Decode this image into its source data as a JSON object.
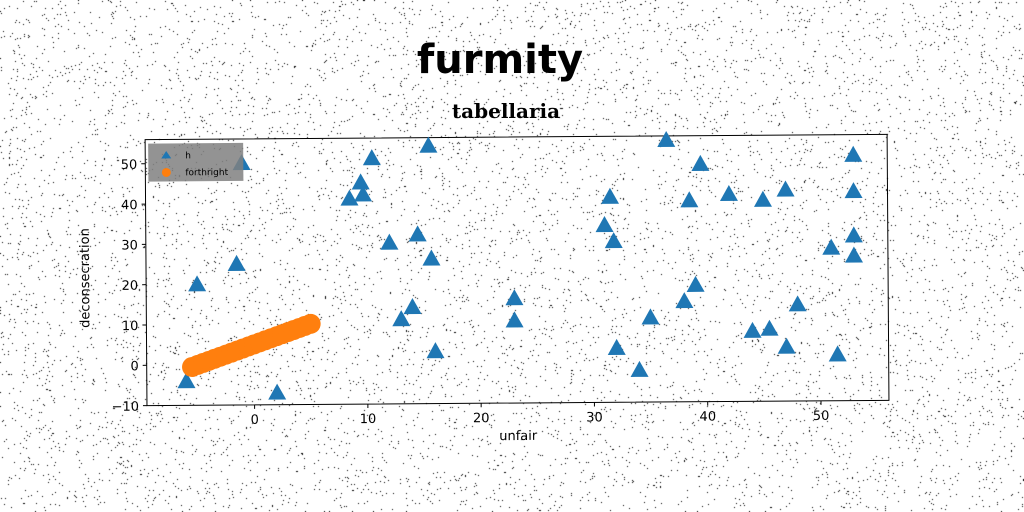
{
  "figure": {
    "title": "furmity",
    "subtitle": "tabellaria",
    "background": "#ffffff"
  },
  "chart_data": {
    "type": "scatter",
    "title": "tabellaria",
    "xlabel": "unfair",
    "ylabel": "deconsecration",
    "xlim": [
      -9.5,
      56
    ],
    "ylim": [
      -10,
      56
    ],
    "xticks": [
      "0",
      "10",
      "20",
      "30",
      "40",
      "50"
    ],
    "yticks": [
      "−10",
      "0",
      "10",
      "20",
      "30",
      "40",
      "50"
    ],
    "grid": false,
    "legend": {
      "placement": "top-left",
      "background": "#808080",
      "entries": [
        {
          "label": "h",
          "marker": "triangle-icon",
          "color": "#1f77b4"
        },
        {
          "label": "forthright",
          "marker": "circle-icon",
          "color": "#ff7f0e"
        }
      ]
    },
    "series": [
      {
        "name": "h",
        "color": "#1f77b4",
        "marker": "triangle",
        "points": [
          [
            -6,
            -4
          ],
          [
            -5,
            20
          ],
          [
            -1.5,
            25
          ],
          [
            -1,
            50
          ],
          [
            2,
            -7
          ],
          [
            8.5,
            41
          ],
          [
            9.5,
            45
          ],
          [
            9.7,
            42
          ],
          [
            10.5,
            51
          ],
          [
            12,
            30
          ],
          [
            13,
            11
          ],
          [
            14,
            14
          ],
          [
            14.5,
            32
          ],
          [
            15.5,
            54
          ],
          [
            15.7,
            26
          ],
          [
            16,
            3
          ],
          [
            23,
            16
          ],
          [
            23,
            10.5
          ],
          [
            31,
            34
          ],
          [
            31.5,
            41
          ],
          [
            31.8,
            30
          ],
          [
            32,
            3.5
          ],
          [
            34,
            -2
          ],
          [
            35,
            11
          ],
          [
            36.5,
            55
          ],
          [
            38,
            15
          ],
          [
            38.5,
            40
          ],
          [
            39,
            19
          ],
          [
            39.5,
            49
          ],
          [
            42,
            41.5
          ],
          [
            44,
            7.5
          ],
          [
            45,
            40
          ],
          [
            45.5,
            8
          ],
          [
            47,
            42.5
          ],
          [
            47,
            3.5
          ],
          [
            48,
            14
          ],
          [
            51,
            28
          ],
          [
            51.5,
            1.5
          ],
          [
            53,
            51
          ],
          [
            53,
            42
          ],
          [
            53,
            31
          ],
          [
            53,
            26
          ]
        ]
      },
      {
        "name": "forthright",
        "color": "#ff7f0e",
        "marker": "circle",
        "points": [
          [
            -5.5,
            -0.5
          ],
          [
            -5,
            0
          ],
          [
            -4.5,
            0.5
          ],
          [
            -4,
            1
          ],
          [
            -3.5,
            1.5
          ],
          [
            -3,
            2
          ],
          [
            -2.5,
            2.5
          ],
          [
            -2,
            3
          ],
          [
            -1.5,
            3.5
          ],
          [
            -1,
            4
          ],
          [
            -0.5,
            4.5
          ],
          [
            0,
            5
          ],
          [
            0.5,
            5.5
          ],
          [
            1,
            6
          ],
          [
            1.5,
            6.5
          ],
          [
            2,
            7
          ],
          [
            2.5,
            7.5
          ],
          [
            3,
            8
          ],
          [
            3.5,
            8.5
          ],
          [
            4,
            9
          ],
          [
            4.5,
            9.5
          ],
          [
            5,
            10
          ]
        ]
      }
    ]
  }
}
